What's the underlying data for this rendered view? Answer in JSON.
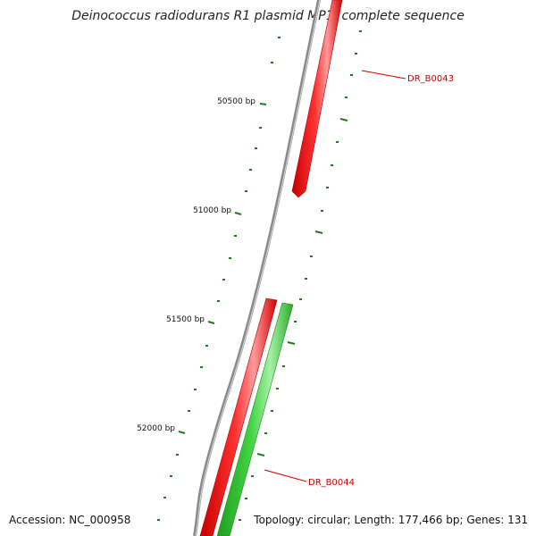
{
  "title": "Deinococcus radiodurans R1 plasmid MP1, complete sequence",
  "footer": {
    "accession": "Accession: NC_000958",
    "summary": "Topology: circular; Length: 177,466 bp; Genes: 131"
  },
  "ruler": {
    "labels": [
      "50500 bp",
      "51000 bp",
      "51500 bp",
      "52000 bp"
    ]
  },
  "genes": [
    {
      "name": "DR_B0043",
      "strand": "reverse",
      "color": "#ff1a1a"
    },
    {
      "name": "DR_B0044",
      "strand": "reverse",
      "color": "#ff1a1a"
    },
    {
      "name": "",
      "strand": "forward",
      "color": "#3ccc3c"
    }
  ],
  "colors": {
    "backbone": "#8a8a8a",
    "tick": "#1f7a1f",
    "label_red": "#cc0000"
  }
}
